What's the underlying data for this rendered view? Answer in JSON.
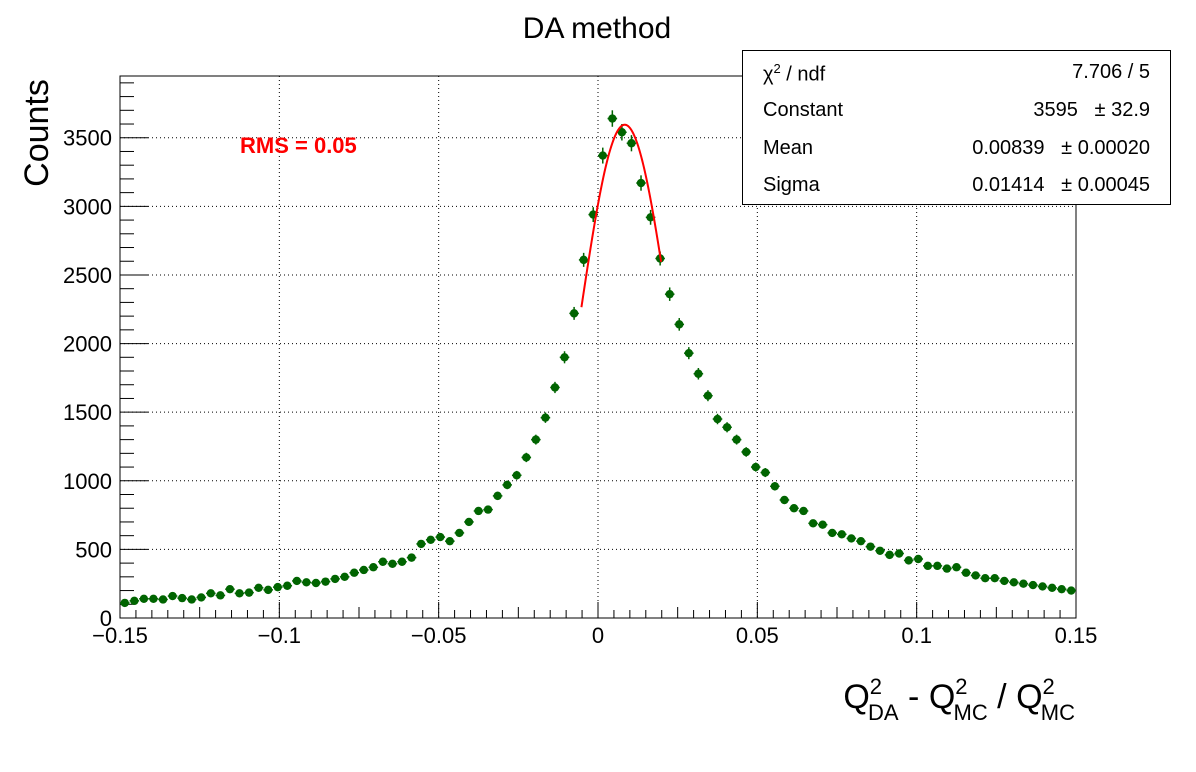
{
  "chart_data": {
    "type": "scatter",
    "title": "DA method",
    "xlabel": {
      "base": "Q",
      "sup": "2",
      "sub": "DA",
      "mid": " - ",
      "base2": "Q",
      "sup2": "2",
      "sub2": "MC",
      "slash": " / ",
      "base3": "Q",
      "sup3": "2",
      "sub3": "MC"
    },
    "ylabel": "Counts",
    "xlim": [
      -0.15,
      0.15
    ],
    "ylim": [
      0,
      3950
    ],
    "x_ticks": [
      "−0.15",
      "−0.1",
      "−0.05",
      "0",
      "0.05",
      "0.1",
      "0.15"
    ],
    "y_ticks": [
      "0",
      "500",
      "1000",
      "1500",
      "2000",
      "2500",
      "3000",
      "3500"
    ],
    "grid": true,
    "annotation": {
      "text": "RMS = 0.05",
      "color": "#ff0000"
    },
    "series": [
      {
        "kind": "histogram-points",
        "color": "#006400",
        "x": [
          -0.1485,
          -0.1455,
          -0.1425,
          -0.1395,
          -0.1365,
          -0.1335,
          -0.1305,
          -0.1275,
          -0.1245,
          -0.1215,
          -0.1185,
          -0.1155,
          -0.1125,
          -0.1095,
          -0.1065,
          -0.1035,
          -0.1005,
          -0.0975,
          -0.0945,
          -0.0915,
          -0.0885,
          -0.0855,
          -0.0825,
          -0.0795,
          -0.0765,
          -0.0735,
          -0.0705,
          -0.0675,
          -0.0645,
          -0.0615,
          -0.0585,
          -0.0555,
          -0.0525,
          -0.0495,
          -0.0465,
          -0.0435,
          -0.0405,
          -0.0375,
          -0.0345,
          -0.0315,
          -0.0285,
          -0.0255,
          -0.0225,
          -0.0195,
          -0.0165,
          -0.0135,
          -0.0105,
          -0.0075,
          -0.0045,
          -0.0015,
          0.0015,
          0.0045,
          0.0075,
          0.0105,
          0.0135,
          0.0165,
          0.0195,
          0.0225,
          0.0255,
          0.0285,
          0.0315,
          0.0345,
          0.0375,
          0.0405,
          0.0435,
          0.0465,
          0.0495,
          0.0525,
          0.0555,
          0.0585,
          0.0615,
          0.0645,
          0.0675,
          0.0705,
          0.0735,
          0.0765,
          0.0795,
          0.0825,
          0.0855,
          0.0885,
          0.0915,
          0.0945,
          0.0975,
          0.1005,
          0.1035,
          0.1065,
          0.1095,
          0.1125,
          0.1155,
          0.1185,
          0.1215,
          0.1245,
          0.1275,
          0.1305,
          0.1335,
          0.1365,
          0.1395,
          0.1425,
          0.1455,
          0.1485
        ],
        "y": [
          110,
          125,
          140,
          140,
          135,
          160,
          145,
          135,
          150,
          180,
          165,
          210,
          180,
          185,
          220,
          205,
          225,
          235,
          270,
          260,
          255,
          265,
          285,
          300,
          330,
          350,
          370,
          410,
          395,
          410,
          440,
          540,
          570,
          590,
          560,
          620,
          700,
          780,
          790,
          890,
          970,
          1040,
          1170,
          1300,
          1460,
          1680,
          1900,
          2220,
          2610,
          2940,
          3370,
          3640,
          3540,
          3460,
          3170,
          2920,
          2620,
          2360,
          2140,
          1930,
          1780,
          1620,
          1450,
          1390,
          1300,
          1210,
          1100,
          1060,
          960,
          860,
          800,
          780,
          690,
          680,
          620,
          610,
          580,
          560,
          520,
          490,
          460,
          470,
          420,
          430,
          380,
          380,
          360,
          370,
          330,
          310,
          290,
          290,
          270,
          260,
          250,
          240,
          230,
          220,
          210,
          200
        ],
        "yerr": [
          11,
          11,
          12,
          12,
          12,
          13,
          12,
          12,
          12,
          13,
          13,
          14,
          13,
          14,
          15,
          14,
          15,
          15,
          16,
          16,
          16,
          16,
          17,
          17,
          18,
          19,
          19,
          20,
          20,
          20,
          21,
          23,
          24,
          24,
          24,
          25,
          26,
          28,
          28,
          30,
          31,
          32,
          34,
          36,
          38,
          41,
          44,
          47,
          51,
          54,
          58,
          60,
          60,
          59,
          56,
          54,
          51,
          49,
          46,
          44,
          42,
          40,
          38,
          37,
          36,
          35,
          33,
          33,
          31,
          29,
          28,
          28,
          26,
          26,
          25,
          25,
          24,
          24,
          23,
          22,
          21,
          22,
          20,
          21,
          19,
          19,
          19,
          19,
          18,
          18,
          17,
          17,
          16,
          16,
          16,
          15,
          15,
          15,
          14,
          14
        ]
      },
      {
        "kind": "fit-curve",
        "color": "#ff0000",
        "model": "gaus",
        "range": [
          -0.0052,
          0.0198
        ],
        "params": {
          "constant": 3595,
          "mean": 0.00839,
          "sigma": 0.01414
        }
      }
    ],
    "stats": [
      {
        "name_base": "χ",
        "name_sup": "2",
        "name_rest": " / ndf",
        "value": "7.706 / 5"
      },
      {
        "name": "Constant",
        "value": "3595   ± 32.9"
      },
      {
        "name": "Mean",
        "value": "0.00839   ± 0.00020"
      },
      {
        "name": "Sigma",
        "value": "0.01414   ± 0.00045"
      }
    ]
  }
}
